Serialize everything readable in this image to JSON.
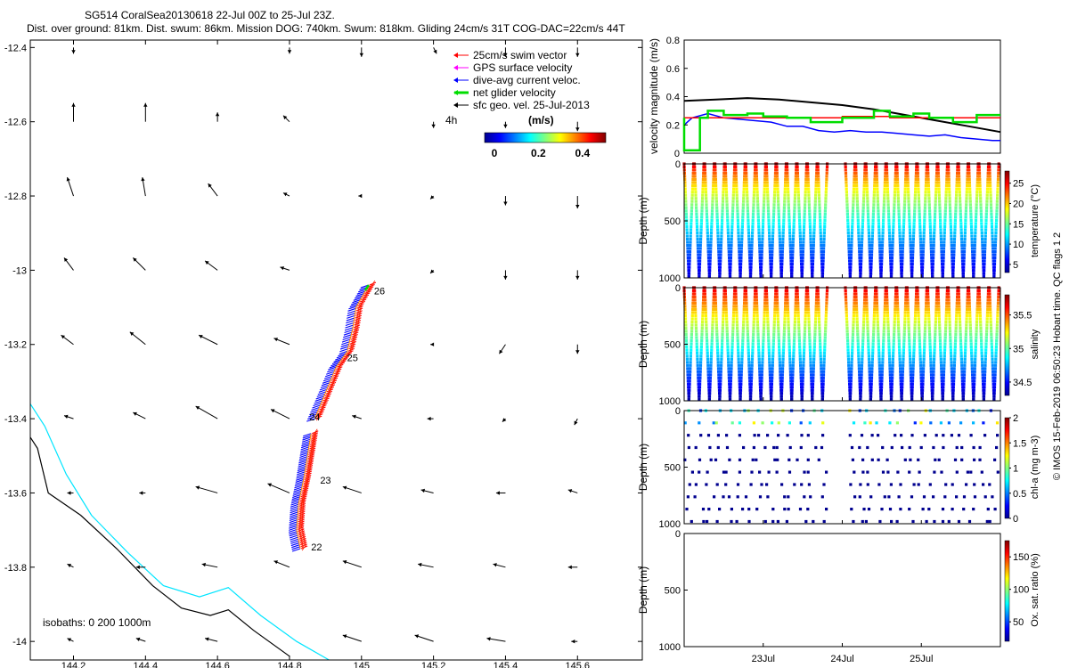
{
  "header": {
    "line1": "SG514 CoralSea20130618 22-Jul 00Z to 25-Jul 23Z.",
    "line2": "Dist. over ground: 81km. Dist. swum: 86km. Mission DOG: 740km. Swum: 818km. Gliding 24cm/s 31T COG-DAC=22cm/s 44T"
  },
  "map": {
    "xlim": [
      144.08,
      145.78
    ],
    "ylim": [
      -14.05,
      -12.38
    ],
    "xticks": [
      144.2,
      144.4,
      144.6,
      144.8,
      145,
      145.2,
      145.4,
      145.6
    ],
    "yticks": [
      -12.4,
      -12.6,
      -12.8,
      -13,
      -13.2,
      -13.4,
      -13.6,
      -13.8,
      -14
    ],
    "xtick_labels": [
      "144.2",
      "144.4",
      "144.6",
      "144.8",
      "145",
      "145.2",
      "145.4",
      "145.6"
    ],
    "ytick_labels": [
      "-12.4",
      "-12.6",
      "-12.8",
      "-13",
      "-13.2",
      "-13.4",
      "-13.6",
      "-13.8",
      "-14"
    ],
    "legend": [
      "25cm/s swim vector",
      "GPS surface velocity",
      "dive-avg current veloc.",
      "net glider velocity",
      "sfc geo. vel. 25-Jul-2013"
    ],
    "legend_colors": [
      "#ff0000",
      "#ff00ff",
      "#0000ff",
      "#00dd00",
      "#000000"
    ],
    "colorbar_label": "(m/s)",
    "colorbar_ticks": [
      "0",
      "0.2",
      "0.4"
    ],
    "time_label": "4h",
    "isobaths_label": "isobaths: 0   200  1000m",
    "day_labels": [
      {
        "text": "22",
        "lon": 144.86,
        "lat": -13.755
      },
      {
        "text": "23",
        "lon": 144.885,
        "lat": -13.575
      },
      {
        "text": "24",
        "lon": 144.855,
        "lat": -13.405
      },
      {
        "text": "25",
        "lon": 144.96,
        "lat": -13.245
      },
      {
        "text": "26",
        "lon": 145.035,
        "lat": -13.065
      }
    ]
  },
  "chart_data": [
    {
      "type": "scatter",
      "title": "SG514 CoralSea20130618 22-Jul 00Z to 25-Jul 23Z.",
      "xlim": [
        144.08,
        145.78
      ],
      "ylim": [
        -14.05,
        -12.38
      ],
      "track": {
        "leg1": [
          [
            144.83,
            -13.75
          ],
          [
            144.82,
            -13.7
          ],
          [
            144.825,
            -13.63
          ],
          [
            144.84,
            -13.56
          ],
          [
            144.85,
            -13.5
          ],
          [
            144.86,
            -13.44
          ]
        ],
        "leg2": [
          [
            144.87,
            -13.4
          ],
          [
            144.9,
            -13.33
          ],
          [
            144.93,
            -13.26
          ],
          [
            144.96,
            -13.22
          ],
          [
            144.975,
            -13.16
          ],
          [
            144.985,
            -13.1
          ],
          [
            145.02,
            -13.04
          ]
        ]
      },
      "isobath_0": [
        [
          144.08,
          -13.45
        ],
        [
          144.1,
          -13.48
        ],
        [
          144.13,
          -13.6
        ],
        [
          144.22,
          -13.66
        ],
        [
          144.32,
          -13.75
        ],
        [
          144.42,
          -13.85
        ],
        [
          144.5,
          -13.91
        ],
        [
          144.58,
          -13.93
        ],
        [
          144.63,
          -13.915
        ],
        [
          144.7,
          -13.97
        ],
        [
          144.8,
          -14.04
        ]
      ],
      "isobath_200": [
        [
          144.08,
          -13.36
        ],
        [
          144.12,
          -13.42
        ],
        [
          144.18,
          -13.55
        ],
        [
          144.25,
          -13.66
        ],
        [
          144.35,
          -13.76
        ],
        [
          144.45,
          -13.85
        ],
        [
          144.55,
          -13.88
        ],
        [
          144.63,
          -13.855
        ],
        [
          144.72,
          -13.93
        ],
        [
          144.82,
          -14.0
        ],
        [
          144.91,
          -14.05
        ]
      ],
      "geo_arrows": [
        {
          "lon": 144.2,
          "lat": -12.4,
          "u": 0.0,
          "v": -0.02
        },
        {
          "lon": 144.2,
          "lat": -12.6,
          "u": 0.0,
          "v": 0.06
        },
        {
          "lon": 144.2,
          "lat": -12.8,
          "u": -0.02,
          "v": 0.06
        },
        {
          "lon": 144.2,
          "lat": -13.0,
          "u": -0.03,
          "v": 0.04
        },
        {
          "lon": 144.2,
          "lat": -13.2,
          "u": -0.04,
          "v": 0.03
        },
        {
          "lon": 144.2,
          "lat": -13.4,
          "u": -0.03,
          "v": 0.01
        },
        {
          "lon": 144.2,
          "lat": -13.6,
          "u": -0.02,
          "v": 0.0
        },
        {
          "lon": 144.2,
          "lat": -13.8,
          "u": -0.02,
          "v": 0.01
        },
        {
          "lon": 144.2,
          "lat": -14.0,
          "u": -0.02,
          "v": 0.01
        },
        {
          "lon": 144.4,
          "lat": -12.6,
          "u": 0.0,
          "v": 0.06
        },
        {
          "lon": 144.4,
          "lat": -12.8,
          "u": -0.01,
          "v": 0.06
        },
        {
          "lon": 144.4,
          "lat": -13.0,
          "u": -0.04,
          "v": 0.04
        },
        {
          "lon": 144.4,
          "lat": -13.2,
          "u": -0.05,
          "v": 0.04
        },
        {
          "lon": 144.4,
          "lat": -13.4,
          "u": -0.04,
          "v": 0.02
        },
        {
          "lon": 144.4,
          "lat": -13.6,
          "u": -0.02,
          "v": 0.0
        },
        {
          "lon": 144.4,
          "lat": -13.8,
          "u": -0.03,
          "v": 0.0
        },
        {
          "lon": 144.4,
          "lat": -14.0,
          "u": -0.03,
          "v": 0.01
        },
        {
          "lon": 144.6,
          "lat": -12.6,
          "u": 0.0,
          "v": 0.03
        },
        {
          "lon": 144.6,
          "lat": -12.8,
          "u": -0.03,
          "v": 0.04
        },
        {
          "lon": 144.6,
          "lat": -13.0,
          "u": -0.04,
          "v": 0.03
        },
        {
          "lon": 144.6,
          "lat": -13.2,
          "u": -0.06,
          "v": 0.03
        },
        {
          "lon": 144.6,
          "lat": -13.4,
          "u": -0.07,
          "v": 0.04
        },
        {
          "lon": 144.6,
          "lat": -13.6,
          "u": -0.07,
          "v": 0.02
        },
        {
          "lon": 144.6,
          "lat": -13.8,
          "u": -0.05,
          "v": 0.01
        },
        {
          "lon": 144.6,
          "lat": -14.0,
          "u": -0.04,
          "v": 0.01
        },
        {
          "lon": 144.8,
          "lat": -12.4,
          "u": 0.0,
          "v": -0.02
        },
        {
          "lon": 144.8,
          "lat": -12.6,
          "u": -0.02,
          "v": 0.02
        },
        {
          "lon": 144.8,
          "lat": -12.8,
          "u": -0.02,
          "v": 0.01
        },
        {
          "lon": 144.8,
          "lat": -13.0,
          "u": -0.03,
          "v": 0.01
        },
        {
          "lon": 144.8,
          "lat": -13.2,
          "u": -0.05,
          "v": 0.02
        },
        {
          "lon": 144.8,
          "lat": -13.4,
          "u": -0.06,
          "v": 0.03
        },
        {
          "lon": 144.8,
          "lat": -13.6,
          "u": -0.07,
          "v": 0.03
        },
        {
          "lon": 144.8,
          "lat": -13.8,
          "u": -0.05,
          "v": 0.02
        },
        {
          "lon": 145.0,
          "lat": -12.4,
          "u": 0.0,
          "v": -0.03
        },
        {
          "lon": 145.0,
          "lat": -12.8,
          "u": -0.01,
          "v": 0.0
        },
        {
          "lon": 145.0,
          "lat": -13.4,
          "u": -0.03,
          "v": 0.01
        },
        {
          "lon": 145.0,
          "lat": -13.6,
          "u": -0.06,
          "v": 0.02
        },
        {
          "lon": 145.0,
          "lat": -13.8,
          "u": -0.06,
          "v": 0.02
        },
        {
          "lon": 145.0,
          "lat": -14.0,
          "u": -0.06,
          "v": 0.02
        },
        {
          "lon": 145.2,
          "lat": -12.4,
          "u": 0.01,
          "v": -0.02
        },
        {
          "lon": 145.2,
          "lat": -12.6,
          "u": 0.0,
          "v": -0.02
        },
        {
          "lon": 145.2,
          "lat": -12.8,
          "u": -0.01,
          "v": -0.01
        },
        {
          "lon": 145.2,
          "lat": -13.0,
          "u": -0.01,
          "v": -0.01
        },
        {
          "lon": 145.2,
          "lat": -13.2,
          "u": -0.01,
          "v": 0.0
        },
        {
          "lon": 145.2,
          "lat": -13.4,
          "u": -0.02,
          "v": 0.0
        },
        {
          "lon": 145.2,
          "lat": -13.6,
          "u": -0.04,
          "v": 0.01
        },
        {
          "lon": 145.2,
          "lat": -13.8,
          "u": -0.05,
          "v": 0.01
        },
        {
          "lon": 145.2,
          "lat": -14.0,
          "u": -0.06,
          "v": 0.02
        },
        {
          "lon": 145.4,
          "lat": -12.4,
          "u": 0.0,
          "v": -0.03
        },
        {
          "lon": 145.4,
          "lat": -12.6,
          "u": 0.0,
          "v": -0.02
        },
        {
          "lon": 145.4,
          "lat": -12.8,
          "u": 0.0,
          "v": -0.03
        },
        {
          "lon": 145.4,
          "lat": -13.0,
          "u": 0.0,
          "v": -0.03
        },
        {
          "lon": 145.4,
          "lat": -13.2,
          "u": -0.02,
          "v": -0.03
        },
        {
          "lon": 145.4,
          "lat": -13.4,
          "u": -0.01,
          "v": -0.01
        },
        {
          "lon": 145.4,
          "lat": -13.6,
          "u": -0.03,
          "v": 0.0
        },
        {
          "lon": 145.4,
          "lat": -13.8,
          "u": -0.04,
          "v": 0.01
        },
        {
          "lon": 145.4,
          "lat": -14.0,
          "u": -0.06,
          "v": 0.01
        },
        {
          "lon": 145.6,
          "lat": -12.4,
          "u": 0.0,
          "v": -0.03
        },
        {
          "lon": 145.6,
          "lat": -12.6,
          "u": 0.0,
          "v": -0.03
        },
        {
          "lon": 145.6,
          "lat": -12.8,
          "u": 0.0,
          "v": -0.04
        },
        {
          "lon": 145.6,
          "lat": -13.0,
          "u": 0.0,
          "v": -0.03
        },
        {
          "lon": 145.6,
          "lat": -13.2,
          "u": 0.0,
          "v": -0.03
        },
        {
          "lon": 145.6,
          "lat": -13.4,
          "u": -0.01,
          "v": -0.02
        },
        {
          "lon": 145.6,
          "lat": -13.6,
          "u": -0.03,
          "v": 0.01
        },
        {
          "lon": 145.6,
          "lat": -13.8,
          "u": -0.03,
          "v": 0.0
        },
        {
          "lon": 145.6,
          "lat": -14.0,
          "u": -0.02,
          "v": 0.0
        }
      ]
    },
    {
      "type": "line",
      "ylabel": "velocity magnitude (m/s)",
      "xlim": [
        22.0,
        26.0
      ],
      "ylim": [
        0,
        0.8
      ],
      "yticks": [
        0,
        0.2,
        0.4,
        0.6,
        0.8
      ],
      "ytick_labels": [
        "0",
        "0.2",
        "0.4",
        "0.6",
        "0.8"
      ],
      "series": [
        {
          "color": "#000000",
          "x": [
            22.0,
            22.4,
            22.8,
            23.2,
            23.6,
            24.0,
            24.4,
            24.8,
            25.2,
            25.6,
            26.0
          ],
          "values": [
            0.37,
            0.38,
            0.39,
            0.38,
            0.36,
            0.34,
            0.31,
            0.27,
            0.23,
            0.19,
            0.15
          ]
        },
        {
          "color": "#0000ff",
          "x": [
            22.0,
            22.1,
            22.3,
            22.5,
            22.7,
            22.9,
            23.1,
            23.3,
            23.5,
            23.7,
            23.9,
            24.1,
            24.3,
            24.5,
            24.7,
            24.9,
            25.1,
            25.3,
            25.5,
            25.7,
            25.9,
            26.0
          ],
          "values": [
            0.2,
            0.25,
            0.28,
            0.25,
            0.24,
            0.23,
            0.22,
            0.19,
            0.19,
            0.16,
            0.15,
            0.16,
            0.15,
            0.15,
            0.14,
            0.13,
            0.12,
            0.13,
            0.11,
            0.1,
            0.09,
            0.09
          ]
        },
        {
          "color": "#ff0000",
          "x": [
            22.0,
            22.6,
            22.6,
            23.2,
            23.2,
            24.0,
            24.0,
            24.6,
            24.6,
            25.2,
            25.2,
            26.0
          ],
          "values": [
            0.25,
            0.25,
            0.25,
            0.25,
            0.25,
            0.25,
            0.26,
            0.26,
            0.25,
            0.25,
            0.25,
            0.25
          ]
        },
        {
          "color": "#00dd00",
          "x": [
            22.0,
            22.0,
            22.2,
            22.2,
            22.3,
            22.3,
            22.5,
            22.5,
            22.8,
            22.8,
            23.0,
            23.0,
            23.3,
            23.3,
            23.6,
            23.6,
            24.0,
            24.0,
            24.2,
            24.2,
            24.4,
            24.4,
            24.6,
            24.6,
            24.9,
            24.9,
            25.1,
            25.1,
            25.4,
            25.4,
            25.7,
            25.7,
            26.0
          ],
          "values": [
            0.25,
            0.02,
            0.02,
            0.25,
            0.25,
            0.3,
            0.3,
            0.27,
            0.27,
            0.28,
            0.28,
            0.26,
            0.26,
            0.25,
            0.25,
            0.22,
            0.22,
            0.25,
            0.25,
            0.25,
            0.25,
            0.3,
            0.3,
            0.26,
            0.26,
            0.28,
            0.28,
            0.25,
            0.25,
            0.22,
            0.22,
            0.27,
            0.27
          ]
        }
      ]
    },
    {
      "type": "scatter",
      "variable": "temperature",
      "ylabel": "Depth (m)",
      "clabel": "temperature (°C)",
      "ylim": [
        1000,
        0
      ],
      "yticks": [
        "0",
        "500",
        "1000"
      ],
      "cticks": [
        "5",
        "10",
        "15",
        "20",
        "25"
      ],
      "crange": [
        3,
        28
      ],
      "sampling": "dense"
    },
    {
      "type": "scatter",
      "variable": "salinity",
      "ylabel": "Depth (m)",
      "clabel": "salinity",
      "ylim": [
        1000,
        0
      ],
      "yticks": [
        "0",
        "500",
        "1000"
      ],
      "cticks": [
        "34.5",
        "35",
        "35.5"
      ],
      "crange": [
        34.3,
        35.8
      ],
      "sampling": "dense"
    },
    {
      "type": "scatter",
      "variable": "chl-a",
      "ylabel": "Depth (m)",
      "clabel": "chl-a (mg m-3)",
      "ylim": [
        1000,
        0
      ],
      "yticks": [
        "0",
        "500",
        "1000"
      ],
      "cticks": [
        "0",
        "0.5",
        "1",
        "1.5",
        "2"
      ],
      "crange": [
        0,
        2
      ],
      "sampling": "sparse"
    },
    {
      "type": "scatter",
      "variable": "oxygen",
      "ylabel": "Depth (m)",
      "clabel": "Ox. sat. ratio (%)",
      "ylim": [
        1000,
        0
      ],
      "yticks": [
        "0",
        "500",
        "1000"
      ],
      "cticks": [
        "50",
        "100",
        "150"
      ],
      "crange": [
        20,
        175
      ],
      "sampling": "none",
      "xlabels": [
        "23Jul",
        "24Jul",
        "25Jul"
      ],
      "xlabel_days": [
        23,
        24,
        25
      ]
    }
  ],
  "dives": {
    "xlim": [
      22.0,
      26.0
    ],
    "start_times": [
      22.0,
      22.13,
      22.26,
      22.39,
      22.52,
      22.65,
      22.78,
      22.91,
      23.04,
      23.17,
      23.3,
      23.43,
      23.56,
      23.69,
      24.04,
      24.17,
      24.3,
      24.43,
      24.56,
      24.69,
      24.82,
      24.95,
      25.08,
      25.21,
      25.34,
      25.47,
      25.6,
      25.73,
      25.86
    ]
  },
  "side_note": "© IMOS 15-Feb-2019 06:50:23 Hobart time. QC flags 1  2"
}
